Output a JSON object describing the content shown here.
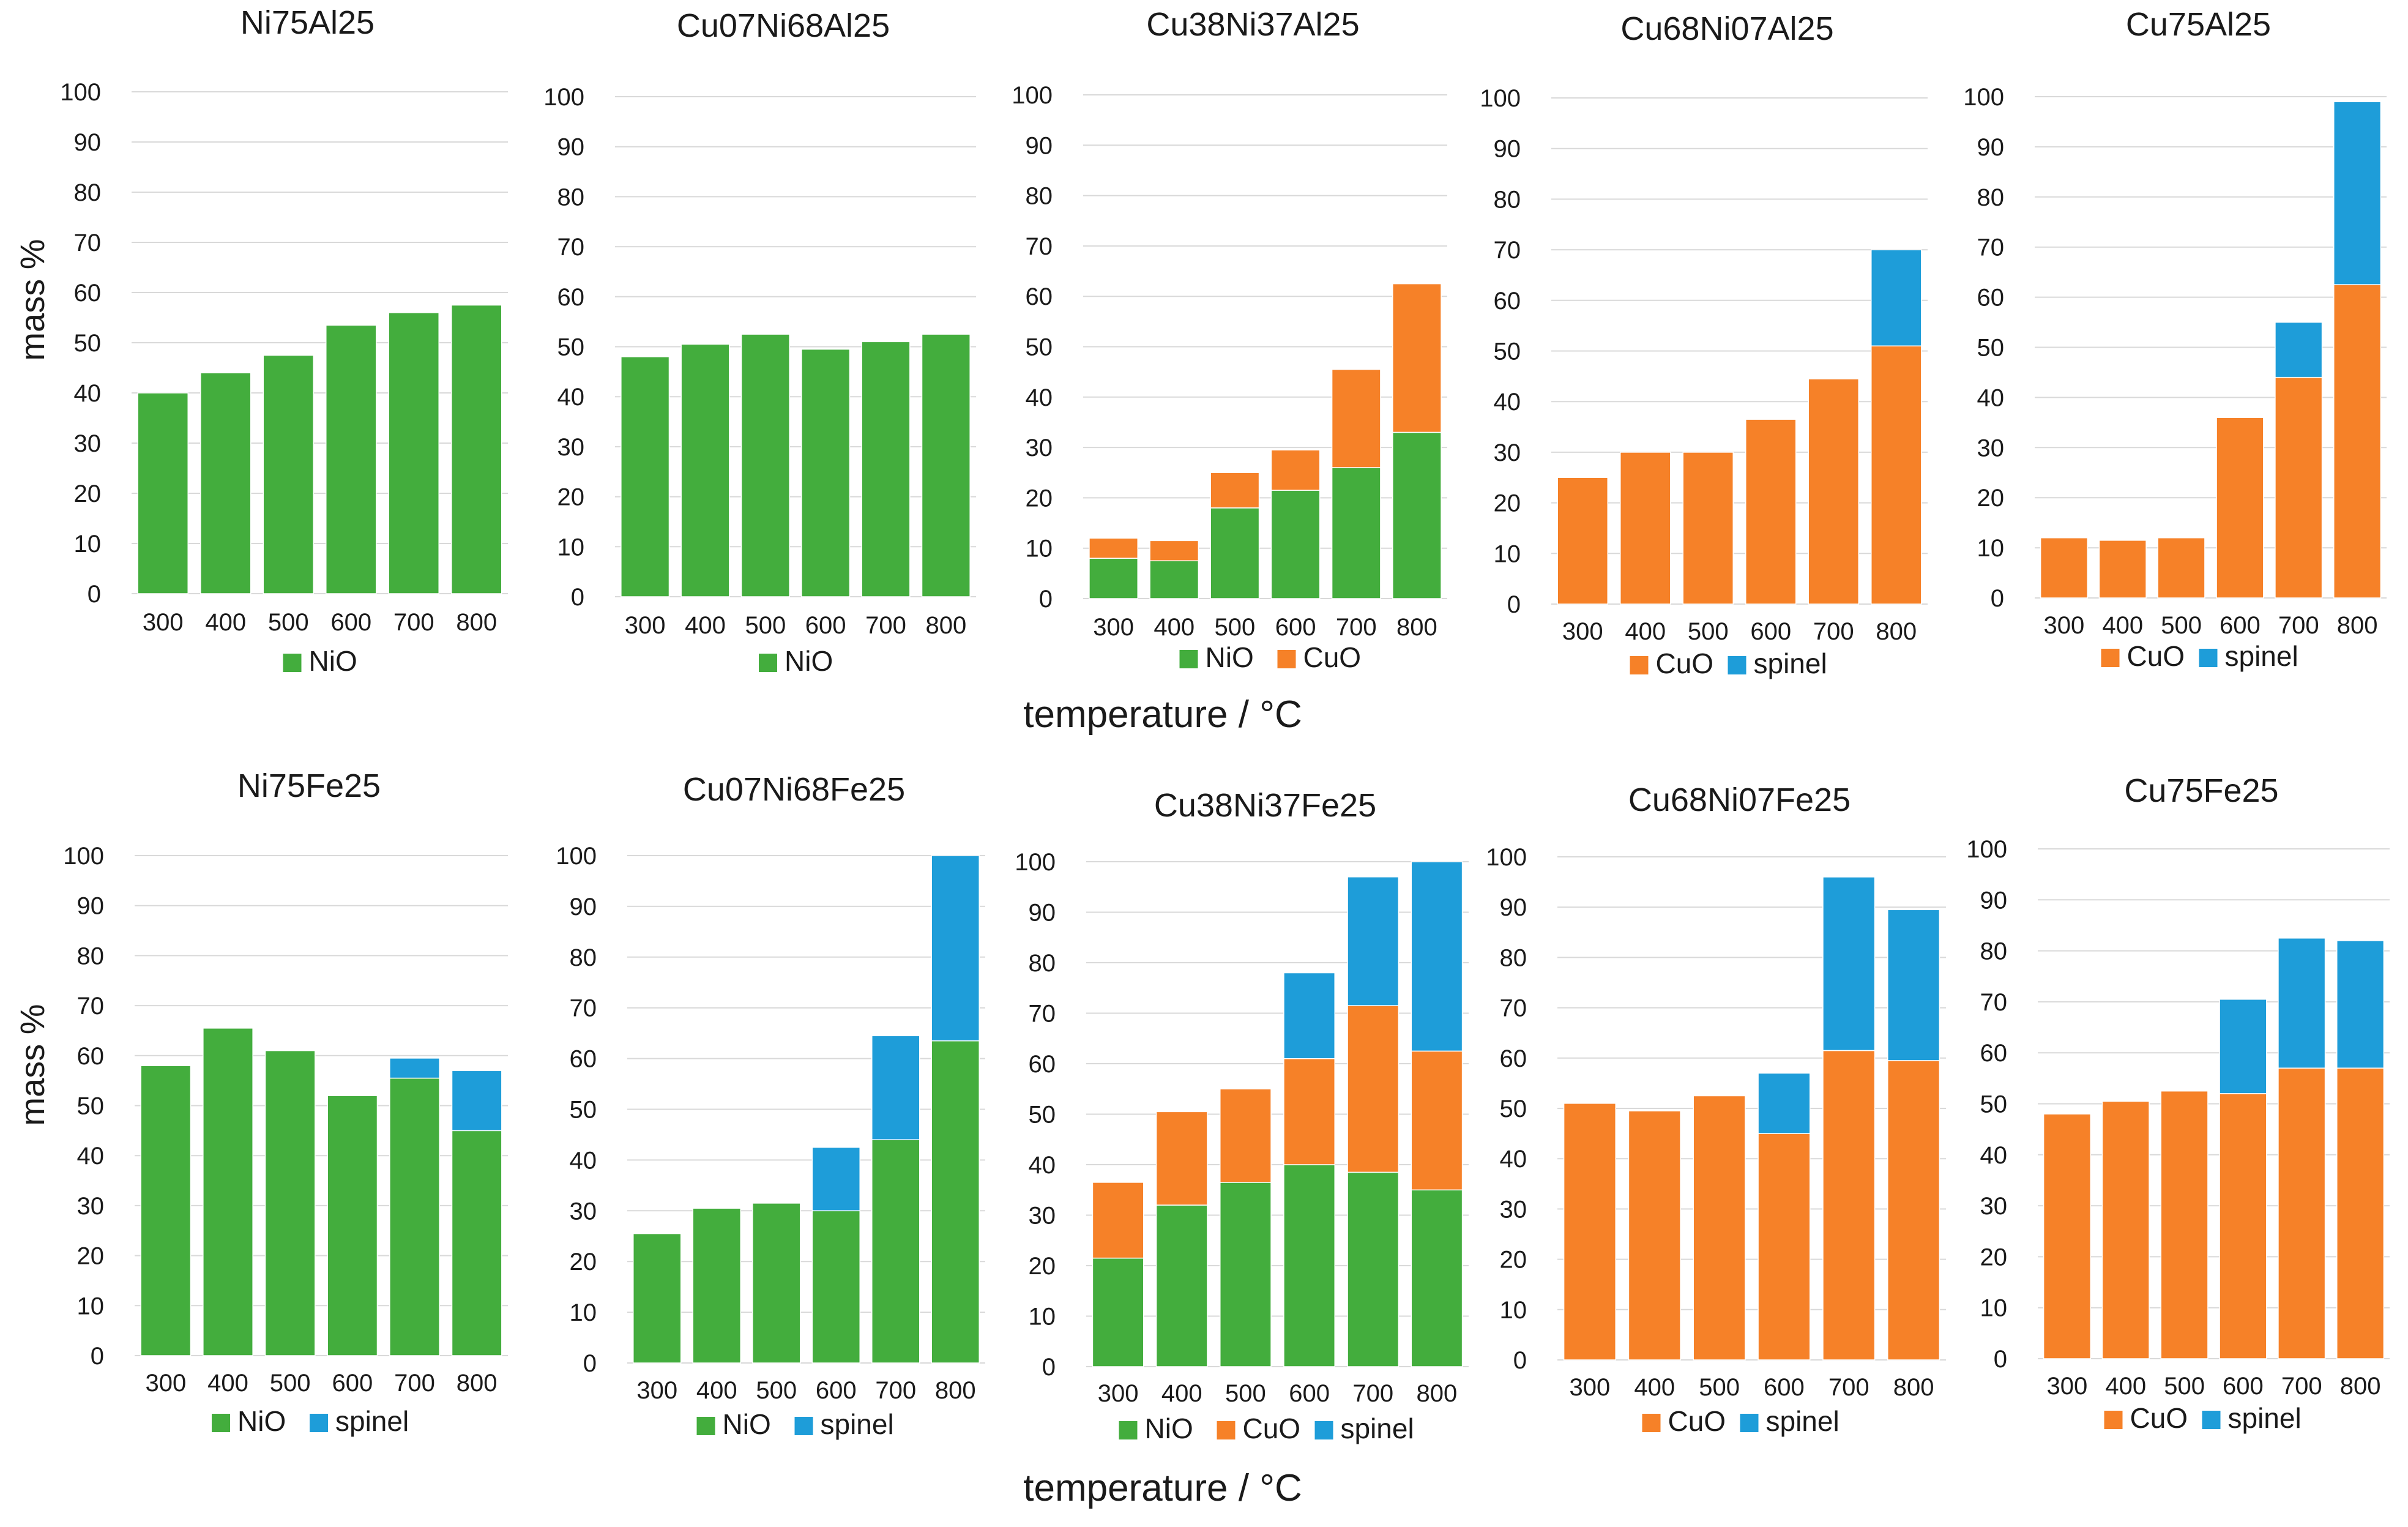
{
  "figure": {
    "ylabel": "mass %",
    "xlabel": "temperature / °C"
  },
  "colors": {
    "NiO": "#43ad3d",
    "CuO": "#f68128",
    "spinel": "#1e9dd9",
    "grid": "#d9d9d9",
    "text": "#1a1a1a"
  },
  "chart_data": [
    {
      "type": "bar",
      "stacked": true,
      "title": "Ni75Al25",
      "categories": [
        "300",
        "400",
        "500",
        "600",
        "700",
        "800"
      ],
      "ylim": [
        0,
        100
      ],
      "yticks": [
        0,
        10,
        20,
        30,
        40,
        50,
        60,
        70,
        80,
        90,
        100
      ],
      "series": [
        {
          "name": "NiO",
          "values": [
            40,
            44,
            47.5,
            53.5,
            56,
            57.5
          ]
        }
      ]
    },
    {
      "type": "bar",
      "stacked": true,
      "title": "Cu07Ni68Al25",
      "categories": [
        "300",
        "400",
        "500",
        "600",
        "700",
        "800"
      ],
      "ylim": [
        0,
        100
      ],
      "yticks": [
        0,
        10,
        20,
        30,
        40,
        50,
        60,
        70,
        80,
        90,
        100
      ],
      "series": [
        {
          "name": "NiO",
          "values": [
            48,
            50.5,
            52.5,
            49.5,
            51,
            52.5
          ]
        }
      ]
    },
    {
      "type": "bar",
      "stacked": true,
      "title": "Cu38Ni37Al25",
      "categories": [
        "300",
        "400",
        "500",
        "600",
        "700",
        "800"
      ],
      "ylim": [
        0,
        100
      ],
      "yticks": [
        0,
        10,
        20,
        30,
        40,
        50,
        60,
        70,
        80,
        90,
        100
      ],
      "series": [
        {
          "name": "NiO",
          "values": [
            8,
            7.5,
            18,
            21.5,
            26,
            33
          ]
        },
        {
          "name": "CuO",
          "values": [
            4,
            4,
            7,
            8,
            19.5,
            29.5
          ]
        }
      ]
    },
    {
      "type": "bar",
      "stacked": true,
      "title": "Cu68Ni07Al25",
      "categories": [
        "300",
        "400",
        "500",
        "600",
        "700",
        "800"
      ],
      "ylim": [
        0,
        100
      ],
      "yticks": [
        0,
        10,
        20,
        30,
        40,
        50,
        60,
        70,
        80,
        90,
        100
      ],
      "series": [
        {
          "name": "CuO",
          "values": [
            25,
            30,
            30,
            36.5,
            44.5,
            51
          ]
        },
        {
          "name": "spinel",
          "values": [
            0,
            0,
            0,
            0,
            0,
            19
          ]
        }
      ]
    },
    {
      "type": "bar",
      "stacked": true,
      "title": "Cu75Al25",
      "categories": [
        "300",
        "400",
        "500",
        "600",
        "700",
        "800"
      ],
      "ylim": [
        0,
        100
      ],
      "yticks": [
        0,
        10,
        20,
        30,
        40,
        50,
        60,
        70,
        80,
        90,
        100
      ],
      "series": [
        {
          "name": "CuO",
          "values": [
            12,
            11.5,
            12,
            36,
            44,
            62.5
          ]
        },
        {
          "name": "spinel",
          "values": [
            0,
            0,
            0,
            0,
            11,
            36.5
          ]
        }
      ]
    },
    {
      "type": "bar",
      "stacked": true,
      "title": "Ni75Fe25",
      "categories": [
        "300",
        "400",
        "500",
        "600",
        "700",
        "800"
      ],
      "ylim": [
        0,
        100
      ],
      "yticks": [
        0,
        10,
        20,
        30,
        40,
        50,
        60,
        70,
        80,
        90,
        100
      ],
      "series": [
        {
          "name": "NiO",
          "values": [
            58,
            65.5,
            61,
            52,
            55.5,
            45
          ]
        },
        {
          "name": "spinel",
          "values": [
            0,
            0,
            0,
            0,
            4,
            12
          ]
        }
      ]
    },
    {
      "type": "bar",
      "stacked": true,
      "title": "Cu07Ni68Fe25",
      "categories": [
        "300",
        "400",
        "500",
        "600",
        "700",
        "800"
      ],
      "ylim": [
        0,
        100
      ],
      "yticks": [
        0,
        10,
        20,
        30,
        40,
        50,
        60,
        70,
        80,
        90,
        100
      ],
      "series": [
        {
          "name": "NiO",
          "values": [
            25.5,
            30.5,
            31.5,
            30,
            44,
            63.5
          ]
        },
        {
          "name": "spinel",
          "values": [
            0,
            0,
            0,
            12.5,
            20.5,
            36.5
          ]
        }
      ]
    },
    {
      "type": "bar",
      "stacked": true,
      "title": "Cu38Ni37Fe25",
      "categories": [
        "300",
        "400",
        "500",
        "600",
        "700",
        "800"
      ],
      "ylim": [
        0,
        100
      ],
      "yticks": [
        0,
        10,
        20,
        30,
        40,
        50,
        60,
        70,
        80,
        90,
        100
      ],
      "series": [
        {
          "name": "NiO",
          "values": [
            21.5,
            32,
            36.5,
            40,
            38.5,
            35
          ]
        },
        {
          "name": "CuO",
          "values": [
            15,
            18.5,
            18.5,
            21,
            33,
            27.5
          ]
        },
        {
          "name": "spinel",
          "values": [
            0,
            0,
            0,
            17,
            25.5,
            37.5
          ]
        }
      ]
    },
    {
      "type": "bar",
      "stacked": true,
      "title": "Cu68Ni07Fe25",
      "categories": [
        "300",
        "400",
        "500",
        "600",
        "700",
        "800"
      ],
      "ylim": [
        0,
        100
      ],
      "yticks": [
        0,
        10,
        20,
        30,
        40,
        50,
        60,
        70,
        80,
        90,
        100
      ],
      "series": [
        {
          "name": "CuO",
          "values": [
            51,
            49.5,
            52.5,
            45,
            61.5,
            59.5
          ]
        },
        {
          "name": "spinel",
          "values": [
            0,
            0,
            0,
            12,
            34.5,
            30
          ]
        }
      ]
    },
    {
      "type": "bar",
      "stacked": true,
      "title": "Cu75Fe25",
      "categories": [
        "300",
        "400",
        "500",
        "600",
        "700",
        "800"
      ],
      "ylim": [
        0,
        100
      ],
      "yticks": [
        0,
        10,
        20,
        30,
        40,
        50,
        60,
        70,
        80,
        90,
        100
      ],
      "series": [
        {
          "name": "CuO",
          "values": [
            48,
            50.5,
            52.5,
            52,
            57,
            57
          ]
        },
        {
          "name": "spinel",
          "values": [
            0,
            0,
            0,
            18.5,
            25.5,
            25
          ]
        }
      ]
    }
  ]
}
